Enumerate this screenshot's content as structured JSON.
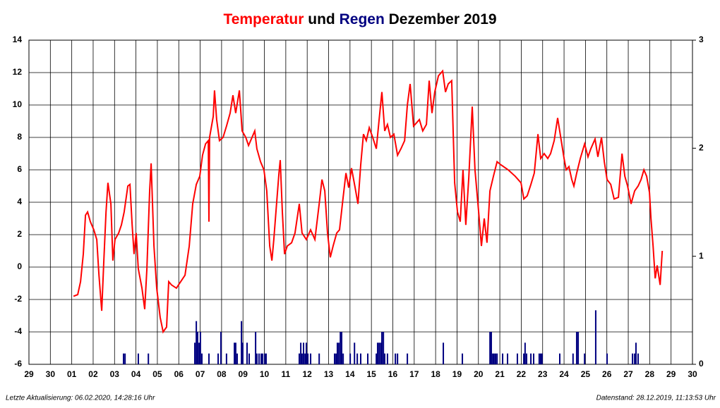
{
  "chart_data": {
    "type": "line",
    "title_connector": "und",
    "title_period": "Dezember 2019",
    "xlim": [
      0,
      31
    ],
    "ylim": [
      -6,
      14
    ],
    "y2lim": [
      0,
      3
    ],
    "xticks": [
      {
        "value": 0,
        "label": "29"
      },
      {
        "value": 1,
        "label": "30"
      },
      {
        "value": 2,
        "label": "01"
      },
      {
        "value": 3,
        "label": "02"
      },
      {
        "value": 4,
        "label": "03"
      },
      {
        "value": 5,
        "label": "04"
      },
      {
        "value": 6,
        "label": "05"
      },
      {
        "value": 7,
        "label": "06"
      },
      {
        "value": 8,
        "label": "07"
      },
      {
        "value": 9,
        "label": "08"
      },
      {
        "value": 10,
        "label": "09"
      },
      {
        "value": 11,
        "label": "10"
      },
      {
        "value": 12,
        "label": "11"
      },
      {
        "value": 13,
        "label": "12"
      },
      {
        "value": 14,
        "label": "13"
      },
      {
        "value": 15,
        "label": "14"
      },
      {
        "value": 16,
        "label": "15"
      },
      {
        "value": 17,
        "label": "16"
      },
      {
        "value": 18,
        "label": "17"
      },
      {
        "value": 19,
        "label": "18"
      },
      {
        "value": 20,
        "label": "19"
      },
      {
        "value": 21,
        "label": "20"
      },
      {
        "value": 22,
        "label": "21"
      },
      {
        "value": 23,
        "label": "22"
      },
      {
        "value": 24,
        "label": "23"
      },
      {
        "value": 25,
        "label": "24"
      },
      {
        "value": 26,
        "label": "25"
      },
      {
        "value": 27,
        "label": "26"
      },
      {
        "value": 28,
        "label": "27"
      },
      {
        "value": 29,
        "label": "28"
      },
      {
        "value": 30,
        "label": "29"
      },
      {
        "value": 31,
        "label": "30"
      }
    ],
    "yticks": [
      -6,
      -4,
      -2,
      0,
      2,
      4,
      6,
      8,
      10,
      12,
      14
    ],
    "y2ticks": [
      0,
      1,
      2,
      3
    ],
    "grid": true,
    "series": [
      {
        "name": "Temperatur",
        "type": "line",
        "color": "#ff0000",
        "x": [
          2.08,
          2.28,
          2.41,
          2.54,
          2.64,
          2.74,
          2.87,
          3.03,
          3.17,
          3.27,
          3.4,
          3.5,
          3.6,
          3.69,
          3.83,
          3.92,
          4.02,
          4.19,
          4.32,
          4.45,
          4.62,
          4.72,
          4.82,
          4.91,
          5.01,
          5.11,
          5.28,
          5.41,
          5.51,
          5.64,
          5.71,
          5.84,
          5.97,
          6.13,
          6.27,
          6.43,
          6.53,
          6.66,
          6.89,
          7.09,
          7.29,
          7.49,
          7.65,
          7.82,
          7.98,
          8.11,
          8.25,
          8.38,
          8.41,
          8.44,
          8.61,
          8.67,
          8.77,
          8.9,
          9.07,
          9.23,
          9.4,
          9.53,
          9.66,
          9.83,
          9.96,
          10.13,
          10.26,
          10.42,
          10.55,
          10.65,
          10.82,
          10.98,
          11.11,
          11.25,
          11.35,
          11.44,
          11.54,
          11.68,
          11.74,
          11.84,
          11.94,
          12.07,
          12.27,
          12.43,
          12.63,
          12.76,
          12.96,
          13.16,
          13.36,
          13.56,
          13.69,
          13.82,
          13.95,
          14.08,
          14.21,
          14.38,
          14.51,
          14.68,
          14.81,
          14.94,
          15.07,
          15.24,
          15.37,
          15.5,
          15.63,
          15.76,
          15.9,
          16.06,
          16.23,
          16.36,
          16.49,
          16.62,
          16.75,
          16.89,
          17.05,
          17.22,
          17.38,
          17.55,
          17.68,
          17.81,
          17.97,
          18.11,
          18.24,
          18.4,
          18.57,
          18.7,
          18.83,
          18.96,
          19.13,
          19.33,
          19.46,
          19.59,
          19.75,
          19.89,
          20.02,
          20.15,
          20.28,
          20.41,
          20.55,
          20.71,
          20.84,
          21.01,
          21.14,
          21.27,
          21.4,
          21.54,
          21.7,
          21.87,
          22.06,
          22.39,
          22.72,
          22.99,
          23.12,
          23.28,
          23.45,
          23.61,
          23.78,
          23.91,
          24.07,
          24.24,
          24.37,
          24.54,
          24.7,
          24.87,
          25.0,
          25.1,
          25.23,
          25.36,
          25.46,
          25.59,
          25.76,
          25.96,
          26.12,
          26.25,
          26.45,
          26.58,
          26.75,
          26.88,
          27.01,
          27.18,
          27.34,
          27.54,
          27.71,
          27.84,
          27.97,
          28.13,
          28.3,
          28.46,
          28.6,
          28.73,
          28.86,
          28.99,
          29.06,
          29.16,
          29.26,
          29.35,
          29.49,
          29.59
        ],
        "values": [
          -1.8,
          -1.7,
          -0.9,
          0.8,
          3.2,
          3.4,
          2.8,
          2.3,
          1.7,
          -0.5,
          -2.7,
          0.4,
          3.4,
          5.2,
          3.9,
          0.4,
          1.7,
          2.1,
          2.6,
          3.4,
          5.0,
          5.1,
          2.6,
          0.8,
          2.1,
          -0.1,
          -1.3,
          -2.6,
          -0.1,
          4.7,
          6.4,
          1.3,
          -1.3,
          -3.1,
          -4.0,
          -3.7,
          -0.9,
          -1.1,
          -1.3,
          -0.9,
          -0.5,
          1.3,
          3.9,
          5.1,
          5.6,
          6.9,
          7.6,
          7.8,
          2.8,
          8.0,
          9.3,
          10.9,
          9.1,
          7.8,
          8.0,
          8.7,
          9.5,
          10.6,
          9.5,
          10.9,
          8.4,
          8.0,
          7.5,
          8.0,
          8.4,
          7.3,
          6.5,
          6.0,
          4.7,
          1.3,
          0.4,
          1.7,
          3.4,
          5.8,
          6.6,
          3.4,
          0.8,
          1.3,
          1.5,
          2.1,
          3.9,
          2.1,
          1.7,
          2.3,
          1.7,
          3.9,
          5.4,
          4.7,
          2.1,
          0.6,
          1.3,
          2.1,
          2.3,
          4.3,
          5.8,
          4.9,
          6.1,
          4.9,
          3.9,
          6.3,
          8.2,
          7.8,
          8.6,
          8.0,
          7.3,
          9.1,
          10.8,
          8.4,
          8.8,
          8.0,
          8.2,
          6.9,
          7.3,
          7.8,
          10.0,
          11.3,
          8.7,
          8.9,
          9.1,
          8.4,
          8.8,
          11.5,
          9.5,
          10.8,
          11.8,
          12.1,
          10.8,
          11.3,
          11.5,
          5.2,
          3.4,
          2.8,
          6.0,
          2.6,
          5.5,
          9.9,
          6.0,
          3.4,
          1.3,
          3.0,
          1.5,
          4.7,
          5.6,
          6.5,
          6.3,
          6.0,
          5.6,
          5.2,
          4.2,
          4.4,
          5.1,
          5.8,
          8.2,
          6.7,
          7.0,
          6.7,
          7.0,
          7.8,
          9.2,
          7.8,
          6.7,
          6.0,
          6.2,
          5.4,
          5.0,
          5.8,
          6.7,
          7.6,
          6.8,
          7.3,
          7.9,
          6.8,
          8.0,
          6.5,
          5.4,
          5.1,
          4.2,
          4.3,
          7.0,
          5.6,
          5.0,
          3.9,
          4.7,
          5.0,
          5.4,
          6.0,
          5.6,
          4.6,
          3.0,
          1.3,
          -0.7,
          0.1,
          -1.1,
          1.0
        ]
      },
      {
        "name": "Regen",
        "type": "bar",
        "axis": "y2",
        "color": "#000080",
        "x": [
          4.42,
          4.49,
          5.11,
          5.58,
          7.75,
          7.82,
          7.88,
          7.95,
          8.01,
          8.08,
          8.41,
          8.84,
          8.97,
          9.23,
          9.6,
          9.66,
          9.73,
          9.93,
          9.99,
          10.19,
          10.29,
          10.59,
          10.65,
          10.75,
          10.85,
          10.92,
          11.02,
          11.08,
          12.63,
          12.7,
          12.76,
          12.83,
          12.9,
          12.96,
          13.03,
          13.16,
          13.56,
          14.28,
          14.35,
          14.41,
          14.48,
          14.55,
          14.61,
          14.68,
          15.01,
          15.21,
          15.34,
          15.5,
          15.83,
          16.23,
          16.29,
          16.36,
          16.43,
          16.49,
          16.56,
          16.62,
          16.75,
          17.12,
          17.22,
          17.68,
          19.36,
          20.25,
          21.54,
          21.6,
          21.67,
          21.73,
          21.8,
          21.87,
          22.13,
          22.36,
          22.82,
          23.12,
          23.18,
          23.25,
          23.45,
          23.58,
          23.84,
          23.91,
          23.97,
          24.8,
          25.42,
          25.59,
          25.66,
          25.96,
          26.48,
          27.01,
          28.2,
          28.3,
          28.36,
          28.46
        ],
        "values": [
          0.1,
          0.1,
          0.1,
          0.1,
          0.2,
          0.4,
          0.3,
          0.2,
          0.3,
          0.1,
          0.1,
          0.1,
          0.3,
          0.1,
          0.2,
          0.2,
          0.1,
          0.4,
          0.2,
          0.2,
          0.1,
          0.3,
          0.1,
          0.1,
          0.1,
          0.1,
          0.1,
          0.1,
          0.1,
          0.2,
          0.1,
          0.2,
          0.1,
          0.2,
          0.1,
          0.1,
          0.1,
          0.1,
          0.1,
          0.2,
          0.2,
          0.3,
          0.3,
          0.1,
          0.1,
          0.2,
          0.1,
          0.1,
          0.1,
          0.1,
          0.2,
          0.2,
          0.2,
          0.3,
          0.3,
          0.1,
          0.1,
          0.1,
          0.1,
          0.1,
          0.2,
          0.1,
          0.3,
          0.3,
          0.1,
          0.1,
          0.1,
          0.1,
          0.1,
          0.1,
          0.1,
          0.1,
          0.2,
          0.1,
          0.1,
          0.1,
          0.1,
          0.1,
          0.1,
          0.1,
          0.1,
          0.3,
          0.3,
          0.1,
          0.5,
          0.1,
          0.1,
          0.1,
          0.2,
          0.1
        ]
      }
    ]
  },
  "footer": {
    "updated": "Letzte Aktualisierung: 06.02.2020, 14:28:16 Uhr",
    "data_state": "Datenstand: 28.12.2019, 11:13:53 Uhr"
  }
}
